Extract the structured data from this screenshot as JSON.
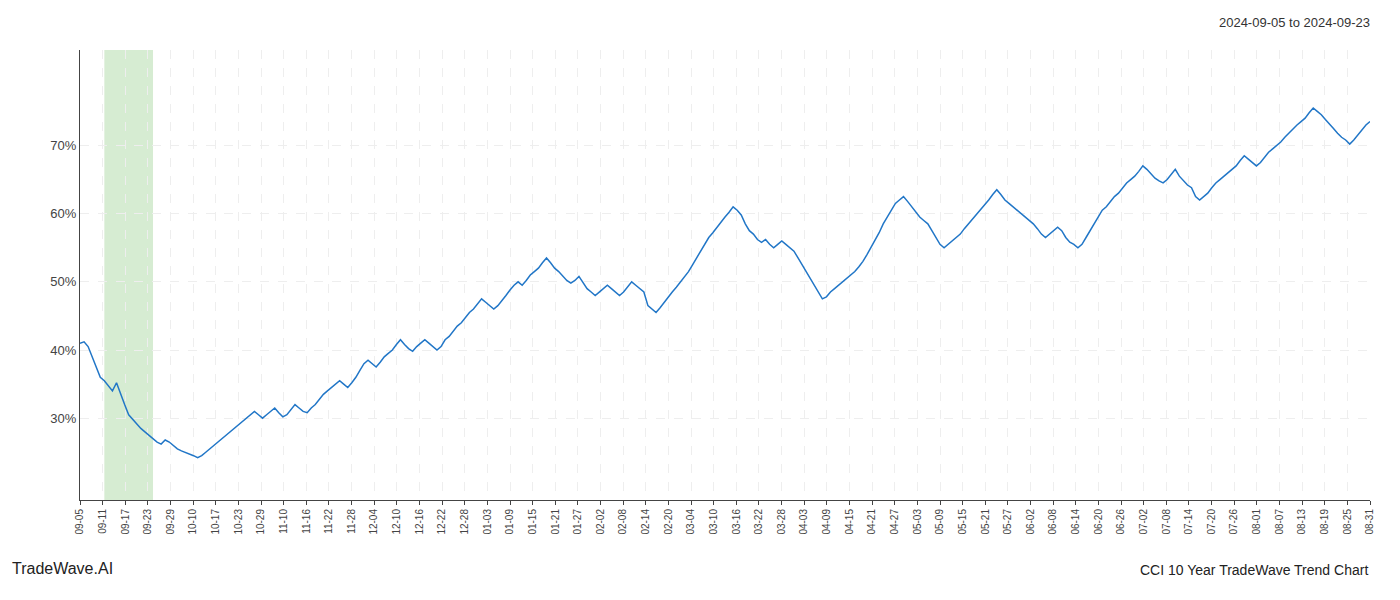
{
  "chart_data": {
    "type": "line",
    "title": "2024-09-05 to 2024-09-23",
    "annotations": [
      "TradeWave.AI",
      "CCI 10 Year TradeWave Trend Chart"
    ],
    "color": "#2176c7",
    "grid": true,
    "shaded_region": {
      "x": [
        6,
        18
      ],
      "color": "#d6ecd2"
    },
    "xlim": [
      0,
      318
    ],
    "xticks": [
      {
        "value": 0,
        "label": "09-05"
      },
      {
        "value": 5.5789,
        "label": "09-11"
      },
      {
        "value": 11.1579,
        "label": "09-17"
      },
      {
        "value": 16.7368,
        "label": "09-23"
      },
      {
        "value": 22.3158,
        "label": "09-29"
      },
      {
        "value": 27.8947,
        "label": "10-10"
      },
      {
        "value": 33.4737,
        "label": "10-17"
      },
      {
        "value": 39.0526,
        "label": "10-23"
      },
      {
        "value": 44.6316,
        "label": "10-29"
      },
      {
        "value": 50.2105,
        "label": "11-10"
      },
      {
        "value": 55.7895,
        "label": "11-16"
      },
      {
        "value": 61.3684,
        "label": "11-22"
      },
      {
        "value": 66.9474,
        "label": "11-28"
      },
      {
        "value": 72.5263,
        "label": "12-04"
      },
      {
        "value": 78.1053,
        "label": "12-10"
      },
      {
        "value": 83.6842,
        "label": "12-16"
      },
      {
        "value": 89.2632,
        "label": "12-22"
      },
      {
        "value": 94.8421,
        "label": "12-28"
      },
      {
        "value": 100.4211,
        "label": "01-03"
      },
      {
        "value": 106,
        "label": "01-09"
      },
      {
        "value": 111.5789,
        "label": "01-15"
      },
      {
        "value": 117.1579,
        "label": "01-21"
      },
      {
        "value": 122.7368,
        "label": "01-27"
      },
      {
        "value": 128.3158,
        "label": "02-02"
      },
      {
        "value": 133.8947,
        "label": "02-08"
      },
      {
        "value": 139.4737,
        "label": "02-14"
      },
      {
        "value": 145.0526,
        "label": "02-20"
      },
      {
        "value": 150.6316,
        "label": "03-04"
      },
      {
        "value": 156.2105,
        "label": "03-10"
      },
      {
        "value": 161.7895,
        "label": "03-16"
      },
      {
        "value": 167.3684,
        "label": "03-22"
      },
      {
        "value": 172.9474,
        "label": "03-28"
      },
      {
        "value": 178.5263,
        "label": "04-03"
      },
      {
        "value": 184.1053,
        "label": "04-09"
      },
      {
        "value": 189.6842,
        "label": "04-15"
      },
      {
        "value": 195.2632,
        "label": "04-21"
      },
      {
        "value": 200.8421,
        "label": "04-27"
      },
      {
        "value": 206.4211,
        "label": "05-03"
      },
      {
        "value": 212,
        "label": "05-09"
      },
      {
        "value": 217.5789,
        "label": "05-15"
      },
      {
        "value": 223.1579,
        "label": "05-21"
      },
      {
        "value": 228.7368,
        "label": "05-27"
      },
      {
        "value": 234.3158,
        "label": "06-02"
      },
      {
        "value": 239.8947,
        "label": "06-08"
      },
      {
        "value": 245.4737,
        "label": "06-14"
      },
      {
        "value": 251.0526,
        "label": "06-20"
      },
      {
        "value": 256.6316,
        "label": "06-26"
      },
      {
        "value": 262.2105,
        "label": "07-02"
      },
      {
        "value": 267.7895,
        "label": "07-08"
      },
      {
        "value": 273.3684,
        "label": "07-14"
      },
      {
        "value": 278.9474,
        "label": "07-20"
      },
      {
        "value": 284.5263,
        "label": "07-26"
      },
      {
        "value": 290.1053,
        "label": "08-01"
      },
      {
        "value": 295.6842,
        "label": "08-07"
      },
      {
        "value": 301.2632,
        "label": "08-13"
      },
      {
        "value": 306.8421,
        "label": "08-19"
      },
      {
        "value": 312.4211,
        "label": "08-25"
      },
      {
        "value": 318,
        "label": "08-31"
      }
    ],
    "ylim": [
      18,
      84
    ],
    "yticks": [
      {
        "value": 30,
        "label": "30%"
      },
      {
        "value": 40,
        "label": "40%"
      },
      {
        "value": 50,
        "label": "50%"
      },
      {
        "value": 60,
        "label": "60%"
      },
      {
        "value": 70,
        "label": "70%"
      }
    ],
    "values": [
      41.0,
      41.2,
      40.5,
      39.0,
      37.5,
      36.0,
      35.5,
      34.8,
      34.0,
      35.2,
      33.5,
      32.0,
      30.5,
      29.8,
      29.2,
      28.5,
      28.0,
      27.5,
      27.0,
      26.5,
      26.2,
      26.8,
      26.5,
      26.0,
      25.5,
      25.2,
      25.0,
      24.8,
      24.5,
      24.2,
      24.5,
      25.0,
      25.5,
      26.0,
      26.5,
      27.0,
      27.5,
      28.0,
      28.5,
      29.0,
      29.5,
      30.0,
      30.5,
      31.0,
      30.5,
      30.0,
      30.5,
      31.0,
      31.5,
      30.8,
      30.2,
      30.5,
      31.2,
      32.0,
      31.5,
      31.0,
      30.8,
      31.5,
      32.0,
      32.8,
      33.5,
      34.0,
      34.5,
      35.0,
      35.5,
      35.0,
      34.5,
      35.2,
      36.0,
      37.0,
      38.0,
      38.5,
      38.0,
      37.5,
      38.2,
      39.0,
      39.5,
      40.0,
      40.8,
      41.5,
      40.8,
      40.2,
      39.8,
      40.5,
      41.0,
      41.5,
      41.0,
      40.5,
      40.0,
      40.5,
      41.5,
      42.0,
      42.8,
      43.5,
      44.0,
      44.8,
      45.5,
      46.0,
      46.8,
      47.5,
      47.0,
      46.5,
      46.0,
      46.5,
      47.2,
      48.0,
      48.8,
      49.5,
      50.0,
      49.5,
      50.2,
      51.0,
      51.5,
      52.0,
      52.8,
      53.5,
      52.8,
      52.0,
      51.5,
      50.8,
      50.2,
      49.8,
      50.2,
      50.8,
      49.8,
      49.0,
      48.5,
      48.0,
      48.5,
      49.0,
      49.5,
      49.0,
      48.5,
      48.0,
      48.5,
      49.2,
      50.0,
      49.5,
      49.0,
      48.5,
      46.5,
      46.0,
      45.5,
      46.2,
      47.0,
      47.8,
      48.5,
      49.2,
      50.0,
      50.8,
      51.5,
      52.5,
      53.5,
      54.5,
      55.5,
      56.5,
      57.2,
      58.0,
      58.8,
      59.5,
      60.2,
      61.0,
      60.5,
      59.8,
      58.5,
      57.5,
      57.0,
      56.2,
      55.8,
      56.2,
      55.5,
      55.0,
      55.5,
      56.0,
      55.5,
      55.0,
      54.5,
      53.5,
      52.5,
      51.5,
      50.5,
      49.5,
      48.5,
      47.5,
      47.8,
      48.5,
      49.0,
      49.5,
      50.0,
      50.5,
      51.0,
      51.5,
      52.2,
      53.0,
      54.0,
      55.0,
      56.0,
      57.2,
      58.5,
      59.5,
      60.5,
      61.5,
      62.0,
      62.5,
      61.8,
      61.0,
      60.2,
      59.5,
      59.0,
      58.5,
      57.5,
      56.5,
      55.5,
      55.0,
      55.5,
      56.0,
      56.5,
      57.0,
      57.8,
      58.5,
      59.2,
      59.8,
      60.5,
      61.2,
      62.0,
      62.8,
      63.5,
      62.8,
      62.0,
      61.5,
      61.0,
      60.5,
      60.0,
      59.5,
      59.0,
      58.5,
      57.8,
      57.0,
      56.5,
      57.0,
      57.5,
      58.0,
      57.5,
      56.5,
      55.8,
      55.5,
      55.0,
      55.5,
      56.5,
      57.5,
      58.5,
      59.5,
      60.5,
      61.0,
      61.8,
      62.5,
      63.0,
      63.8,
      64.5,
      65.0,
      65.5,
      66.2,
      67.0,
      66.5,
      65.8,
      65.2,
      64.8,
      64.5,
      65.0,
      65.8,
      66.5,
      65.5,
      64.8,
      64.2,
      63.8,
      62.5,
      62.0,
      62.5,
      63.0,
      63.8,
      64.5,
      65.0,
      65.5,
      66.0,
      66.5,
      67.0,
      67.8,
      68.5,
      68.0,
      67.5,
      67.0,
      67.5,
      68.2,
      69.0,
      69.5,
      70.0,
      70.5,
      71.2,
      71.8,
      72.5,
      73.0,
      73.5,
      74.0,
      74.8,
      75.5,
      75.0,
      74.5,
      73.8,
      73.2,
      72.5,
      71.8,
      71.2,
      70.8,
      70.2,
      70.8,
      71.5,
      72.2,
      73.0,
      73.5
    ]
  }
}
